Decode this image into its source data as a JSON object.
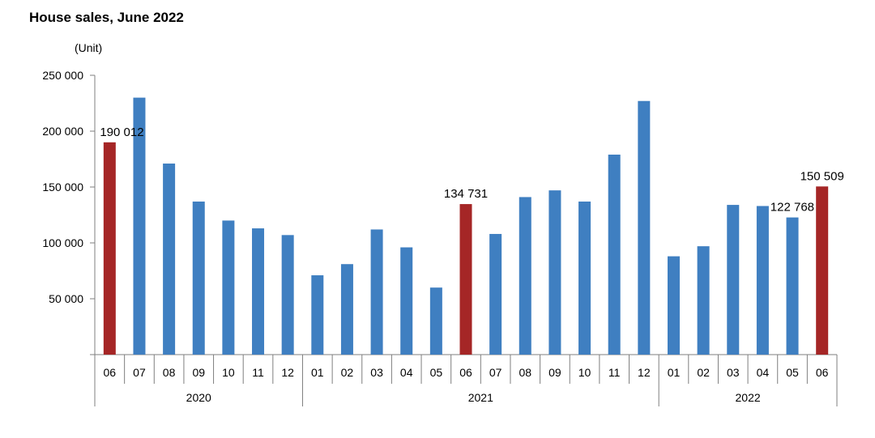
{
  "chart_data": {
    "type": "bar",
    "title": "House sales, June 2022",
    "ylabel": "(Unit)",
    "ylim": [
      0,
      250000
    ],
    "yticks": [
      50000,
      100000,
      150000,
      200000,
      250000
    ],
    "ytick_labels": [
      "50 000",
      "100 000",
      "150 000",
      "200 000",
      "250 000"
    ],
    "grid": false,
    "categories": [
      "06",
      "07",
      "08",
      "09",
      "10",
      "11",
      "12",
      "01",
      "02",
      "03",
      "04",
      "05",
      "06",
      "07",
      "08",
      "09",
      "10",
      "11",
      "12",
      "01",
      "02",
      "03",
      "04",
      "05",
      "06"
    ],
    "years": [
      {
        "label": "2020",
        "count": 7
      },
      {
        "label": "2021",
        "count": 12
      },
      {
        "label": "2022",
        "count": 6
      }
    ],
    "values": [
      190012,
      230000,
      171000,
      137000,
      120000,
      113000,
      107000,
      71000,
      81000,
      112000,
      96000,
      60000,
      134731,
      108000,
      141000,
      147000,
      137000,
      179000,
      227000,
      88000,
      97000,
      134000,
      133000,
      122768,
      150509
    ],
    "highlight_indices": [
      0,
      12,
      24
    ],
    "colors": {
      "default": "#3F7FC1",
      "highlight": "#A52626"
    },
    "data_labels": [
      {
        "index": 0,
        "text": "190 012"
      },
      {
        "index": 12,
        "text": "134 731"
      },
      {
        "index": 23,
        "text": "122 768"
      },
      {
        "index": 24,
        "text": "150 509"
      }
    ]
  }
}
